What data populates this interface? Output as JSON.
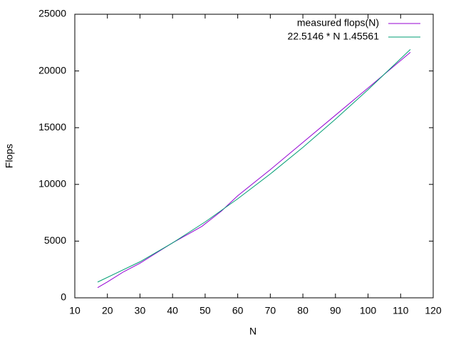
{
  "chart_data": {
    "type": "line",
    "xlabel": "N",
    "ylabel": "Flops",
    "xlim": [
      10,
      120
    ],
    "xticks": [
      10,
      20,
      30,
      40,
      50,
      60,
      70,
      80,
      90,
      100,
      110,
      120
    ],
    "ylim": [
      0,
      25000
    ],
    "yticks": [
      0,
      5000,
      10000,
      15000,
      20000,
      25000
    ],
    "grid": false,
    "legend": "top-right",
    "series": [
      {
        "name": "measured flops(N)",
        "color": "#9400d3",
        "x": [
          17,
          20,
          25,
          30,
          35,
          40,
          45,
          49,
          55,
          60,
          70,
          80,
          90,
          100,
          113
        ],
        "values": [
          900,
          1400,
          2300,
          3050,
          3950,
          4850,
          5650,
          6300,
          7650,
          9000,
          11300,
          13700,
          16100,
          18500,
          21650
        ]
      },
      {
        "name": "22.5146 * N   1.45561",
        "color": "#009e73",
        "x": [
          17,
          30,
          40,
          50,
          60,
          70,
          80,
          90,
          100,
          113
        ],
        "values": [
          1390,
          3180,
          4840,
          6690,
          8730,
          10920,
          13260,
          15750,
          18350,
          21900
        ]
      }
    ]
  }
}
